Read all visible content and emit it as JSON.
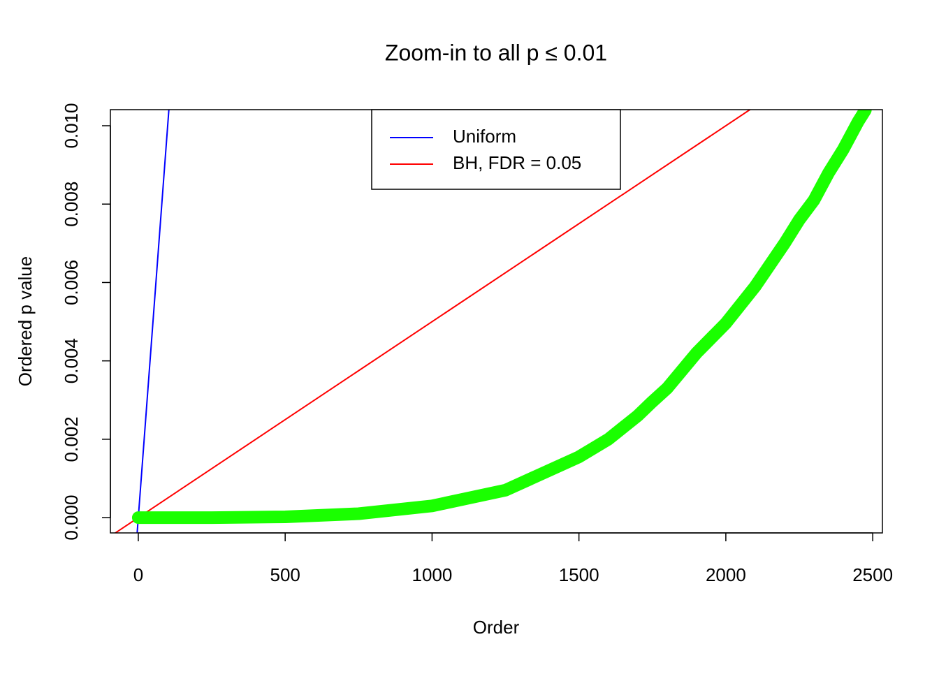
{
  "chart_data": {
    "type": "line",
    "title": "Zoom-in to all p ≤ 0.01",
    "x_label": "Order",
    "y_label": "Ordered p value",
    "xlim": [
      -95,
      2533
    ],
    "ylim": [
      -0.00039,
      0.01041
    ],
    "xticks": [
      0,
      500,
      1000,
      1500,
      2000,
      2500
    ],
    "yticks": [
      {
        "value": 0,
        "label": "0.000"
      },
      {
        "value": 0.002,
        "label": "0.002"
      },
      {
        "value": 0.004,
        "label": "0.004"
      },
      {
        "value": 0.006,
        "label": "0.006"
      },
      {
        "value": 0.008,
        "label": "0.008"
      },
      {
        "value": 0.01,
        "label": "0.010"
      }
    ],
    "legend": "top",
    "series": [
      {
        "name": "Uniform",
        "color": "#0000ff",
        "width": 2,
        "x": [
          -3.9,
          104.1
        ],
        "values": [
          -0.00039,
          0.01041
        ]
      },
      {
        "name": "BH, FDR = 0.05",
        "color": "#ff0000",
        "width": 2,
        "x": [
          -95,
          2082
        ],
        "values": [
          -0.000475,
          0.01041
        ]
      },
      {
        "color": "#1aff00",
        "width": 18,
        "x": [
          0,
          250,
          500,
          750,
          1000,
          1250,
          1500,
          1600,
          1700,
          1750,
          1800,
          1900,
          2000,
          2100,
          2200,
          2250,
          2300,
          2350,
          2400,
          2450,
          2475
        ],
        "values": [
          0,
          0,
          2e-05,
          0.0001,
          0.0003,
          0.0007,
          0.00155,
          0.002,
          0.0026,
          0.00296,
          0.0033,
          0.0042,
          0.00496,
          0.0059,
          0.007,
          0.0076,
          0.0081,
          0.0088,
          0.0094,
          0.0101,
          0.0104
        ]
      }
    ]
  }
}
